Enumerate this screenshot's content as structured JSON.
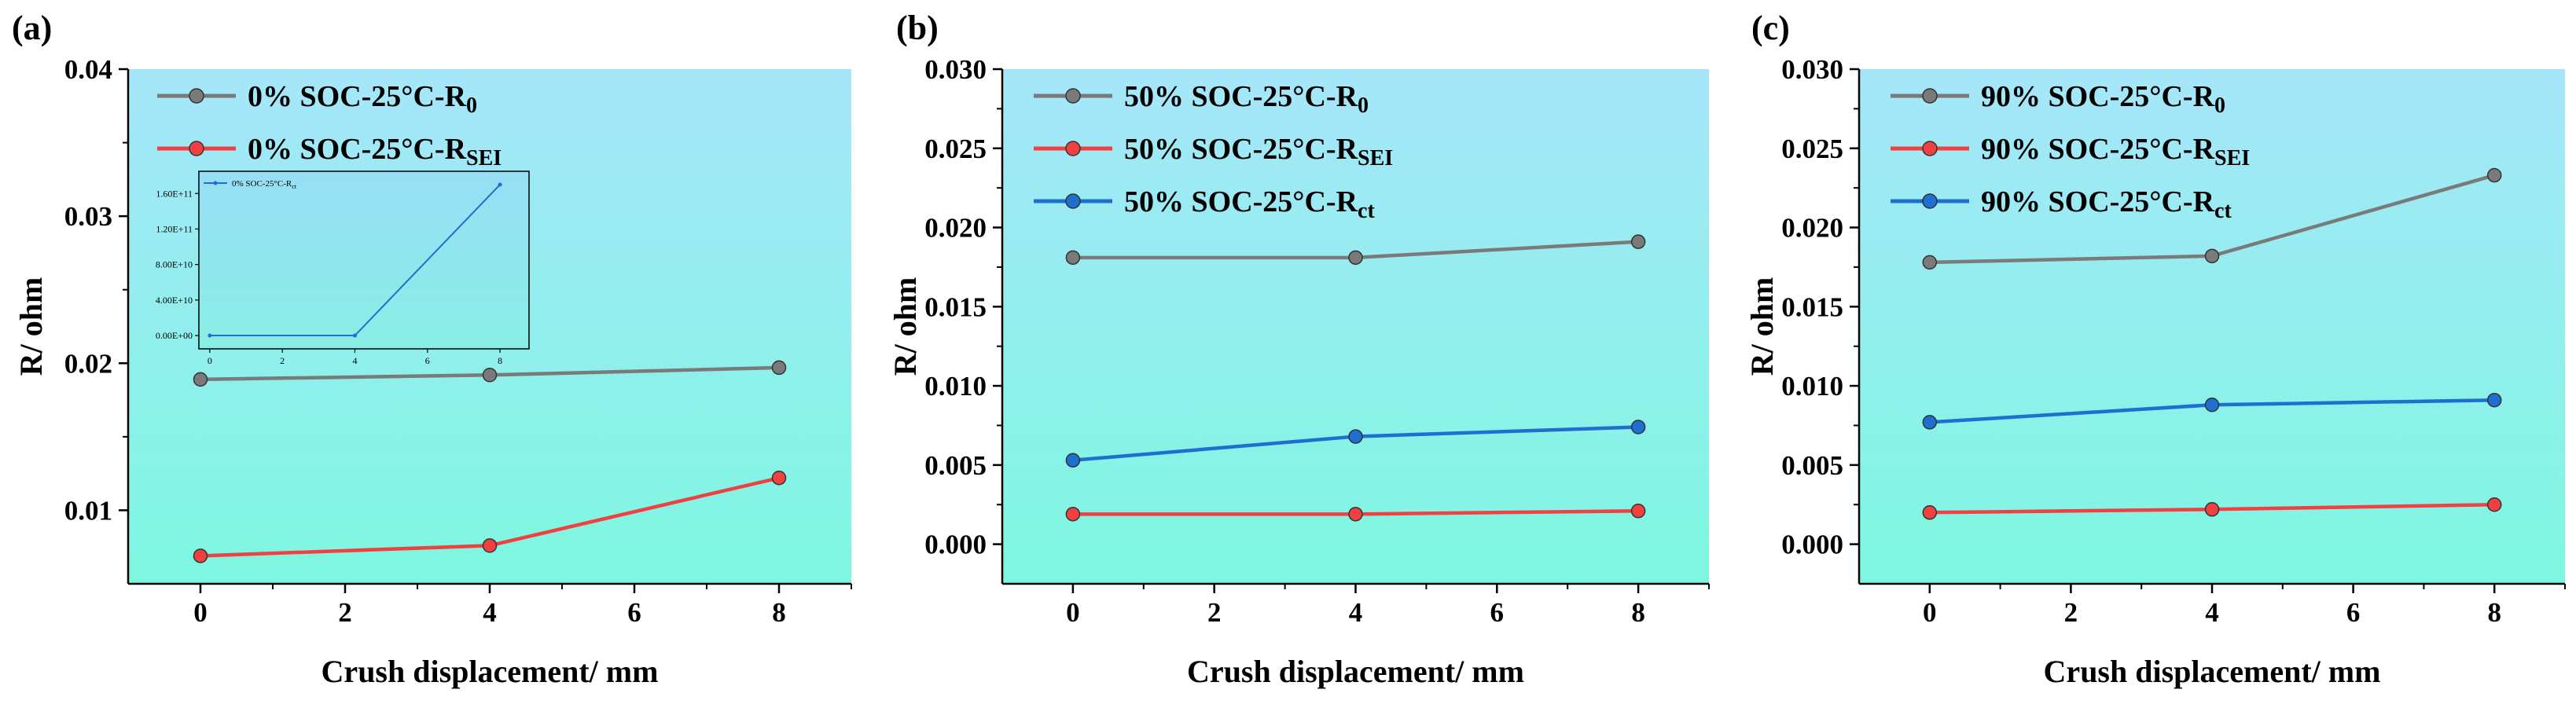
{
  "chart_data": [
    {
      "type": "line",
      "panel_label": "(a)",
      "xlabel": "Crush displacement/ mm",
      "ylabel": "R/ ohm",
      "xlim": [
        -1,
        9
      ],
      "ylim": [
        0.005,
        0.04
      ],
      "x_ticks": [
        0,
        2,
        4,
        6,
        8
      ],
      "y_ticks": [
        0.01,
        0.02,
        0.03,
        0.04
      ],
      "y_tick_labels": [
        "0.01",
        "0.02",
        "0.03",
        "0.04"
      ],
      "legend_position": "top-left",
      "x": [
        0,
        4,
        8
      ],
      "series": [
        {
          "name": "0% SOC-25°C-R",
          "subscript": "0",
          "color": "#7a7a7a",
          "values": [
            0.0189,
            0.0192,
            0.0197
          ]
        },
        {
          "name": "0% SOC-25°C-R",
          "subscript": "SEI",
          "color": "#f04040",
          "values": [
            0.0069,
            0.0076,
            0.0122
          ]
        }
      ],
      "inset": {
        "type": "line",
        "xlim": [
          -0.3,
          8.8
        ],
        "ylim": [
          -15000000000.0,
          185000000000.0
        ],
        "x_ticks": [
          0,
          2,
          4,
          6,
          8
        ],
        "y_ticks": [
          0,
          40000000000.0,
          80000000000.0,
          120000000000.0,
          160000000000.0
        ],
        "y_tick_labels": [
          "0.00E+00",
          "4.00E+10",
          "8.00E+10",
          "1.20E+11",
          "1.60E+11"
        ],
        "x": [
          0,
          4,
          8
        ],
        "series": [
          {
            "name": "0% SOC-25°C-R",
            "subscript": "ct",
            "color": "#1f6fd0",
            "values": [
              0,
              0,
              170000000000.0
            ]
          }
        ]
      }
    },
    {
      "type": "line",
      "panel_label": "(b)",
      "xlabel": "Crush displacement/ mm",
      "ylabel": "R/ ohm",
      "xlim": [
        -1,
        9
      ],
      "ylim": [
        -0.0025,
        0.03
      ],
      "x_ticks": [
        0,
        2,
        4,
        6,
        8
      ],
      "y_ticks": [
        0,
        0.005,
        0.01,
        0.015,
        0.02,
        0.025,
        0.03
      ],
      "y_tick_labels": [
        "0.000",
        "0.005",
        "0.010",
        "0.015",
        "0.020",
        "0.025",
        "0.030"
      ],
      "legend_position": "top-left",
      "x": [
        0,
        4,
        8
      ],
      "series": [
        {
          "name": "50% SOC-25°C-R",
          "subscript": "0",
          "color": "#7a7a7a",
          "values": [
            0.0181,
            0.0181,
            0.0191
          ]
        },
        {
          "name": "50% SOC-25°C-R",
          "subscript": "SEI",
          "color": "#f04040",
          "values": [
            0.0019,
            0.0019,
            0.0021
          ]
        },
        {
          "name": "50% SOC-25°C-R",
          "subscript": "ct",
          "color": "#1f6fd0",
          "values": [
            0.0053,
            0.0068,
            0.0074
          ]
        }
      ]
    },
    {
      "type": "line",
      "panel_label": "(c)",
      "xlabel": "Crush displacement/ mm",
      "ylabel": "R/ ohm",
      "xlim": [
        -1,
        9
      ],
      "ylim": [
        -0.0025,
        0.03
      ],
      "x_ticks": [
        0,
        2,
        4,
        6,
        8
      ],
      "y_ticks": [
        0,
        0.005,
        0.01,
        0.015,
        0.02,
        0.025,
        0.03
      ],
      "y_tick_labels": [
        "0.000",
        "0.005",
        "0.010",
        "0.015",
        "0.020",
        "0.025",
        "0.030"
      ],
      "legend_position": "top-left",
      "x": [
        0,
        4,
        8
      ],
      "series": [
        {
          "name": "90% SOC-25°C-R",
          "subscript": "0",
          "color": "#7a7a7a",
          "values": [
            0.0178,
            0.0182,
            0.0233
          ]
        },
        {
          "name": "90% SOC-25°C-R",
          "subscript": "SEI",
          "color": "#f04040",
          "values": [
            0.002,
            0.0022,
            0.0025
          ]
        },
        {
          "name": "90% SOC-25°C-R",
          "subscript": "ct",
          "color": "#1f6fd0",
          "values": [
            0.0077,
            0.0088,
            0.0091
          ]
        }
      ]
    }
  ]
}
